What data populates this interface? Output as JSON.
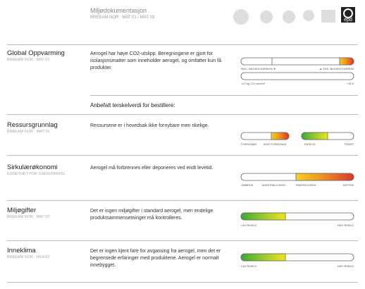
{
  "header": {
    "title": "Miljødokumentasjon",
    "subtitle": "BREEAM NOR : MAT 01 / MAT 03",
    "logo_text": "epd"
  },
  "threshold_heading": "Anbefalt terskelverdi for bestillere:",
  "sections": [
    {
      "title": "Global Oppvarming",
      "code": "BREEAM NOR : MAT 01",
      "description": "Aerogel har høye CO2-utslipp. Beregningene er gjort for isolasjonsmatter som inneholder aerogel, og omfatter kun få produkter.",
      "scale_labels": [
        "INKL. BIOGEN KARBON ▼",
        "▲ EKS. BIOGEN KARBON",
        "-5,0 kg CO₂-ekv/m²",
        "+15,0"
      ]
    },
    {
      "title": "Ressursgrunnlag",
      "code": "BREEAM NOR : MAT 03",
      "description": "Ressursene er i hovedsak ikke fornybare men rikelige.",
      "scale_labels": [
        "FORNYBAR",
        "IKKE FORNYBAR",
        "RIKELIG",
        "TRUET"
      ]
    },
    {
      "title": "Sirkulærøkonomi",
      "code": "EGNETHET FOR GJENVINNING",
      "description": "Aerogel må forbrennes eller deponeres ved endt levetid.",
      "scale_labels": [
        "OMBRUK",
        "MATERIALGJENV.",
        "ENERGIGJENV.",
        "DEPONI"
      ]
    },
    {
      "title": "Miljøgifter",
      "code": "BREEAM NOR : MAT 02",
      "description": "Det er ingen miljøgifter i standard aerogel, men endelige produktsammensetninger må kontrolleres.",
      "scale_labels": [
        "LAV RISIKO",
        "HØY RISIKO"
      ]
    },
    {
      "title": "Inneklima",
      "code": "BREEAM NOR : HEA 02",
      "description": "Det er ingen kjent fare for avgassing fra aerogel, men det er begrensede erfaringer med produktene. Aerogel er normalt innebygget.",
      "scale_labels": [
        "LAV RISIKO",
        "HØY RISIKO"
      ]
    }
  ]
}
